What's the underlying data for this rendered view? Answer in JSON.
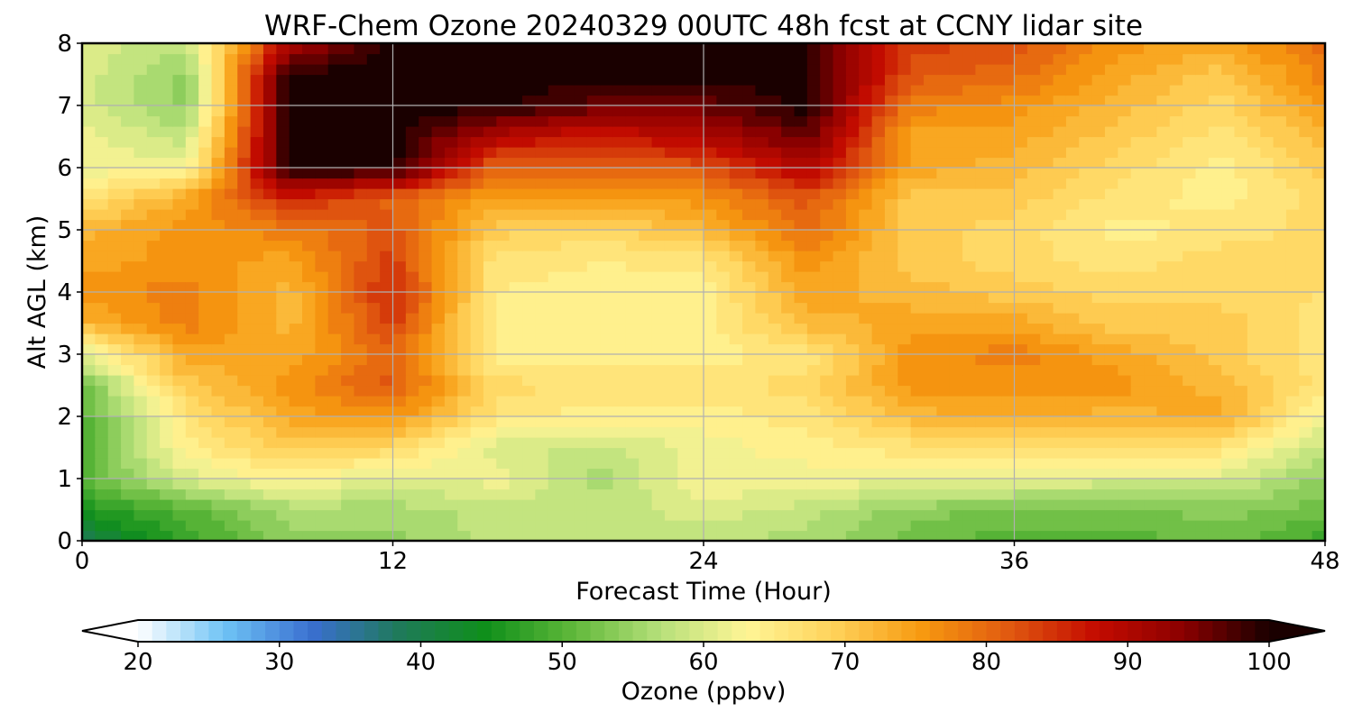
{
  "chart_data": {
    "type": "heatmap",
    "title": "WRF-Chem Ozone  20240329 00UTC 48h fcst at CCNY lidar site",
    "xlabel": "Forecast Time (Hour)",
    "ylabel": "Alt AGL (km)",
    "xlim": [
      0,
      48
    ],
    "ylim": [
      0,
      8
    ],
    "x_ticks": [
      "0",
      "12",
      "24",
      "36",
      "48"
    ],
    "y_ticks": [
      "0",
      "1",
      "2",
      "3",
      "4",
      "5",
      "6",
      "7",
      "8"
    ],
    "grid": true,
    "colorbar": {
      "label": "Ozone  (ppbv)",
      "range": [
        20,
        100
      ],
      "ticks": [
        "20",
        "30",
        "40",
        "50",
        "60",
        "70",
        "80",
        "90",
        "100"
      ],
      "extend": "both",
      "colors": [
        "#ffffff",
        "#6ec3f5",
        "#3a6fd0",
        "#1f7a5a",
        "#0f8f1a",
        "#60b83a",
        "#b6e07a",
        "#fff596",
        "#ffd25a",
        "#f79a10",
        "#e15a10",
        "#c40c00",
        "#8c0000",
        "#1a0000"
      ]
    },
    "times_hour": [
      0,
      4,
      8,
      12,
      16,
      20,
      24,
      28,
      32,
      36,
      40,
      44,
      48
    ],
    "altitudes_km": [
      0,
      0.5,
      1,
      1.5,
      2,
      2.5,
      3,
      3.5,
      4,
      4.5,
      5,
      5.5,
      6,
      6.5,
      7,
      7.5,
      8
    ],
    "ozone_ppbv": [
      [
        38,
        48,
        54,
        54,
        58,
        58,
        58,
        56,
        52,
        50,
        50,
        52,
        48
      ],
      [
        46,
        50,
        56,
        56,
        58,
        58,
        60,
        58,
        54,
        52,
        52,
        54,
        52
      ],
      [
        50,
        60,
        64,
        60,
        62,
        56,
        63,
        62,
        62,
        62,
        60,
        60,
        54
      ],
      [
        50,
        64,
        70,
        68,
        60,
        58,
        62,
        64,
        66,
        66,
        66,
        66,
        58
      ],
      [
        50,
        66,
        74,
        76,
        66,
        64,
        64,
        66,
        72,
        74,
        72,
        74,
        62
      ],
      [
        52,
        70,
        76,
        82,
        68,
        66,
        66,
        68,
        76,
        76,
        76,
        72,
        66
      ],
      [
        60,
        74,
        74,
        80,
        64,
        64,
        64,
        66,
        76,
        78,
        74,
        70,
        66
      ],
      [
        72,
        78,
        72,
        84,
        64,
        64,
        64,
        72,
        74,
        74,
        70,
        70,
        66
      ],
      [
        76,
        78,
        72,
        86,
        65,
        64,
        64,
        74,
        72,
        70,
        68,
        68,
        67
      ],
      [
        74,
        76,
        74,
        84,
        66,
        65,
        66,
        76,
        70,
        68,
        66,
        68,
        67
      ],
      [
        72,
        76,
        78,
        82,
        70,
        68,
        72,
        80,
        70,
        68,
        64,
        66,
        68
      ],
      [
        66,
        74,
        86,
        80,
        74,
        74,
        76,
        82,
        70,
        70,
        66,
        64,
        68
      ],
      [
        62,
        62,
        100,
        100,
        80,
        80,
        82,
        90,
        74,
        72,
        68,
        64,
        70
      ],
      [
        62,
        58,
        100,
        100,
        90,
        86,
        90,
        96,
        74,
        74,
        70,
        66,
        72
      ],
      [
        60,
        54,
        100,
        100,
        100,
        96,
        96,
        100,
        78,
        76,
        72,
        68,
        76
      ],
      [
        60,
        54,
        100,
        100,
        100,
        100,
        100,
        100,
        82,
        80,
        74,
        70,
        78
      ],
      [
        60,
        58,
        90,
        100,
        100,
        100,
        100,
        100,
        84,
        82,
        76,
        74,
        80
      ]
    ]
  }
}
